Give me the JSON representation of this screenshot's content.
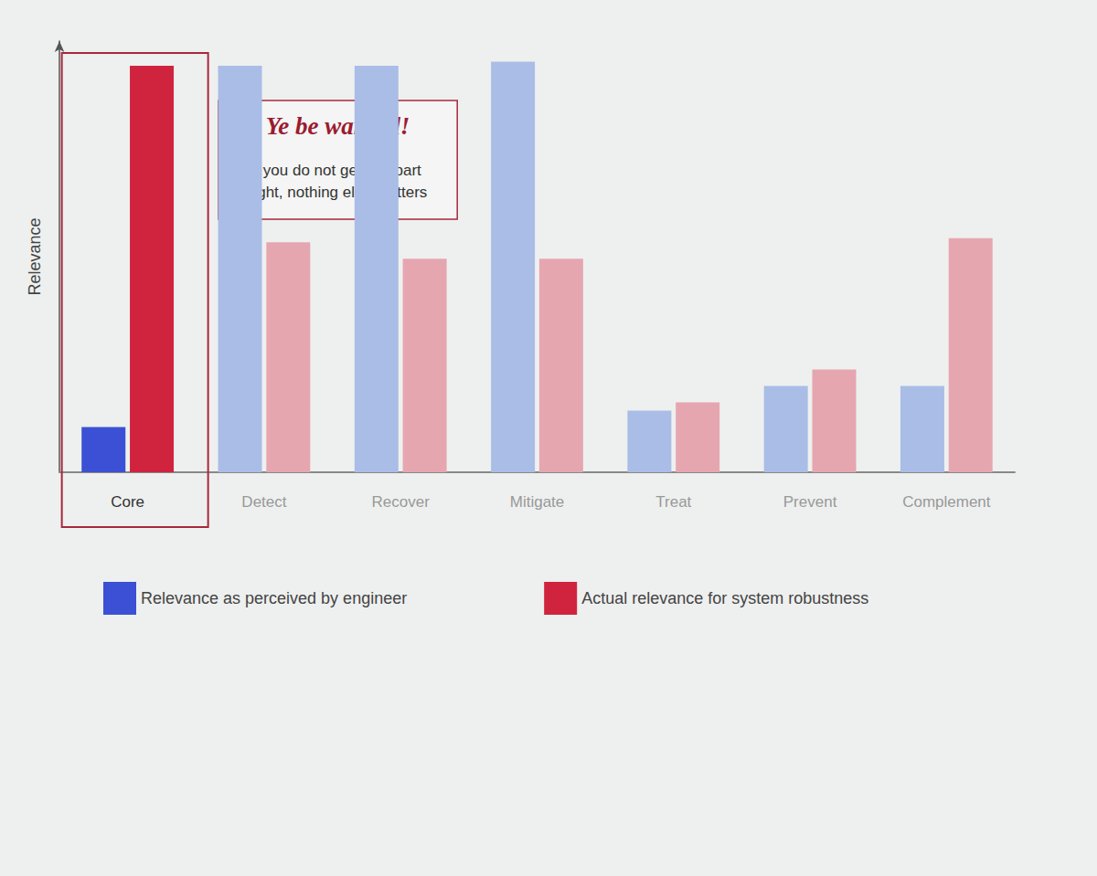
{
  "chart_data": {
    "type": "bar",
    "categories": [
      "Core",
      "Detect",
      "Recover",
      "Mitigate",
      "Treat",
      "Prevent",
      "Complement"
    ],
    "series": [
      {
        "name": "Relevance as perceived by engineer",
        "color": "#3b50d4",
        "colors": [
          "#3b50d4",
          "#a9bde6",
          "#a9bde6",
          "#a9bde6",
          "#a9bde6",
          "#a9bde6",
          "#a9bde6"
        ],
        "values": [
          11,
          99,
          99,
          100,
          15,
          21,
          21
        ]
      },
      {
        "name": "Actual relevance for system robustness",
        "color": "#d0243e",
        "colors": [
          "#d0243e",
          "#e6a6b0",
          "#e6a6b0",
          "#e6a6b0",
          "#e6a6b0",
          "#e6a6b0",
          "#e6a6b0"
        ],
        "values": [
          99,
          56,
          52,
          52,
          17,
          25,
          57
        ]
      }
    ],
    "ylabel": "Relevance",
    "ylim": [
      0,
      105
    ],
    "yticks": [],
    "tick_labels": false,
    "grid": false,
    "legend": "bottom",
    "annotations": [
      {
        "title": "Ye be warned!",
        "text": "If you do not get this part right, nothing else matters"
      }
    ]
  }
}
